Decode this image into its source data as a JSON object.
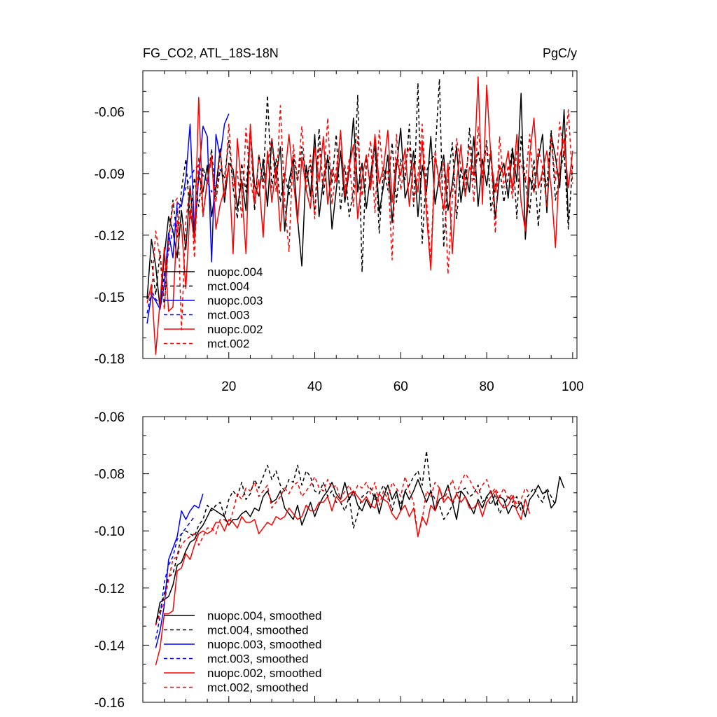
{
  "chart_data": [
    {
      "type": "line",
      "title_left": "FG_CO2, ATL_18S-18N",
      "title_right": "PgC/y",
      "xlim": [
        0,
        101
      ],
      "ylim": [
        -0.18,
        -0.04
      ],
      "xticks": [
        20,
        40,
        60,
        80,
        100
      ],
      "yticks": [
        -0.18,
        -0.15,
        -0.12,
        -0.09,
        -0.06
      ],
      "ytick_labels": [
        "-0.18",
        "-0.15",
        "-0.12",
        "-0.09",
        "-0.06"
      ],
      "xtick_labels": [
        "20",
        "40",
        "60",
        "80",
        "100"
      ],
      "legend_position": "lower-left",
      "series": [
        {
          "name": "nuopc.004",
          "color": "#000000",
          "dash": "solid",
          "x_start": 1,
          "values": [
            -0.151,
            -0.122,
            -0.135,
            -0.156,
            -0.13,
            -0.111,
            -0.118,
            -0.131,
            -0.108,
            -0.127,
            -0.096,
            -0.122,
            -0.091,
            -0.099,
            -0.086,
            -0.111,
            -0.097,
            -0.078,
            -0.104,
            -0.085,
            -0.088,
            -0.107,
            -0.093,
            -0.108,
            -0.068,
            -0.096,
            -0.101,
            -0.083,
            -0.106,
            -0.073,
            -0.092,
            -0.077,
            -0.118,
            -0.094,
            -0.083,
            -0.112,
            -0.135,
            -0.086,
            -0.101,
            -0.071,
            -0.111,
            -0.093,
            -0.082,
            -0.117,
            -0.098,
            -0.079,
            -0.104,
            -0.089,
            -0.063,
            -0.099,
            -0.085,
            -0.107,
            -0.091,
            -0.074,
            -0.109,
            -0.096,
            -0.081,
            -0.114,
            -0.087,
            -0.068,
            -0.102,
            -0.094,
            -0.079,
            -0.111,
            -0.086,
            -0.099,
            -0.072,
            -0.105,
            -0.091,
            -0.081,
            -0.108,
            -0.095,
            -0.077,
            -0.104,
            -0.088,
            -0.099,
            -0.072,
            -0.106,
            -0.083,
            -0.096,
            -0.079,
            -0.112,
            -0.091,
            -0.085,
            -0.102,
            -0.078,
            -0.094,
            -0.051,
            -0.122,
            -0.092,
            -0.099,
            -0.083,
            -0.071,
            -0.109,
            -0.071,
            -0.082,
            -0.097,
            -0.059,
            -0.113
          ]
        },
        {
          "name": "mct.004",
          "color": "#000000",
          "dash": "dashed",
          "x_start": 2,
          "values": [
            -0.132,
            -0.149,
            -0.128,
            -0.155,
            -0.121,
            -0.103,
            -0.121,
            -0.098,
            -0.083,
            -0.112,
            -0.092,
            -0.106,
            -0.087,
            -0.095,
            -0.078,
            -0.103,
            -0.088,
            -0.092,
            -0.074,
            -0.097,
            -0.112,
            -0.085,
            -0.099,
            -0.069,
            -0.108,
            -0.081,
            -0.094,
            -0.052,
            -0.097,
            -0.083,
            -0.104,
            -0.089,
            -0.101,
            -0.081,
            -0.094,
            -0.077,
            -0.092,
            -0.086,
            -0.11,
            -0.068,
            -0.101,
            -0.081,
            -0.095,
            -0.071,
            -0.108,
            -0.086,
            -0.111,
            -0.098,
            -0.052,
            -0.138,
            -0.082,
            -0.096,
            -0.076,
            -0.119,
            -0.087,
            -0.098,
            -0.075,
            -0.104,
            -0.083,
            -0.093,
            -0.066,
            -0.106,
            -0.046,
            -0.124,
            -0.089,
            -0.083,
            -0.081,
            -0.044,
            -0.126,
            -0.093,
            -0.075,
            -0.112,
            -0.087,
            -0.101,
            -0.068,
            -0.093,
            -0.079,
            -0.092,
            -0.074,
            -0.108,
            -0.096,
            -0.087,
            -0.104,
            -0.092,
            -0.077,
            -0.112,
            -0.072,
            -0.094,
            -0.109,
            -0.083,
            -0.116,
            -0.087,
            -0.096,
            -0.069,
            -0.103,
            -0.091,
            -0.079,
            -0.117,
            -0.085
          ]
        },
        {
          "name": "nuopc.003",
          "color": "#0000ff",
          "dash": "solid",
          "x_start": 1,
          "values": [
            -0.163,
            -0.149,
            -0.152,
            -0.156,
            -0.144,
            -0.119,
            -0.131,
            -0.104,
            -0.106,
            -0.092,
            -0.066,
            -0.118,
            -0.091,
            -0.067,
            -0.072,
            -0.133,
            -0.071,
            -0.082,
            -0.066,
            -0.061
          ]
        },
        {
          "name": "mct.003",
          "color": "#0000ff",
          "dash": "dashed",
          "x_start": 1,
          "values": [
            -0.158,
            -0.147,
            -0.151,
            -0.154,
            -0.139,
            -0.128,
            -0.117,
            -0.109,
            -0.104,
            -0.097,
            -0.092,
            -0.088,
            -0.086,
            -0.091,
            -0.094,
            -0.099,
            -0.095,
            -0.088
          ]
        },
        {
          "name": "nuopc.002",
          "color": "#ff0000",
          "dash": "solid",
          "x_start": 1,
          "values": [
            -0.153,
            -0.144,
            -0.178,
            -0.152,
            -0.126,
            -0.157,
            -0.155,
            -0.113,
            -0.115,
            -0.146,
            -0.107,
            -0.123,
            -0.053,
            -0.11,
            -0.094,
            -0.081,
            -0.117,
            -0.105,
            -0.098,
            -0.086,
            -0.129,
            -0.073,
            -0.098,
            -0.129,
            -0.066,
            -0.104,
            -0.093,
            -0.121,
            -0.079,
            -0.104,
            -0.087,
            -0.118,
            -0.092,
            -0.071,
            -0.093,
            -0.114,
            -0.082,
            -0.098,
            -0.107,
            -0.077,
            -0.094,
            -0.072,
            -0.105,
            -0.088,
            -0.094,
            -0.069,
            -0.101,
            -0.087,
            -0.076,
            -0.112,
            -0.092,
            -0.081,
            -0.098,
            -0.071,
            -0.095,
            -0.087,
            -0.069,
            -0.104,
            -0.083,
            -0.091,
            -0.078,
            -0.106,
            -0.085,
            -0.099,
            -0.074,
            -0.11,
            -0.137,
            -0.082,
            -0.094,
            -0.108,
            -0.085,
            -0.129,
            -0.094,
            -0.076,
            -0.101,
            -0.087,
            -0.091,
            -0.043,
            -0.105,
            -0.047,
            -0.083,
            -0.099,
            -0.086,
            -0.091,
            -0.079,
            -0.098,
            -0.071,
            -0.104,
            -0.118,
            -0.081,
            -0.063,
            -0.097,
            -0.089,
            -0.079,
            -0.097,
            -0.126,
            -0.082,
            -0.073,
            -0.097,
            -0.079
          ]
        },
        {
          "name": "mct.002",
          "color": "#ff0000",
          "dash": "dashed",
          "x_start": 2,
          "values": [
            -0.149,
            -0.118,
            -0.131,
            -0.156,
            -0.123,
            -0.105,
            -0.102,
            -0.166,
            -0.113,
            -0.096,
            -0.131,
            -0.082,
            -0.111,
            -0.093,
            -0.084,
            -0.104,
            -0.079,
            -0.101,
            -0.066,
            -0.097,
            -0.089,
            -0.112,
            -0.068,
            -0.093,
            -0.105,
            -0.081,
            -0.098,
            -0.085,
            -0.073,
            -0.099,
            -0.057,
            -0.104,
            -0.128,
            -0.076,
            -0.093,
            -0.067,
            -0.098,
            -0.081,
            -0.112,
            -0.077,
            -0.096,
            -0.063,
            -0.105,
            -0.088,
            -0.071,
            -0.098,
            -0.083,
            -0.106,
            -0.072,
            -0.101,
            -0.088,
            -0.074,
            -0.109,
            -0.069,
            -0.093,
            -0.088,
            -0.132,
            -0.071,
            -0.098,
            -0.084,
            -0.077,
            -0.104,
            -0.091,
            -0.066,
            -0.102,
            -0.133,
            -0.079,
            -0.097,
            -0.084,
            -0.139,
            -0.102,
            -0.073,
            -0.087,
            -0.093,
            -0.076,
            -0.104,
            -0.067,
            -0.091,
            -0.078,
            -0.083,
            -0.119,
            -0.072,
            -0.097,
            -0.086,
            -0.102,
            -0.079,
            -0.085,
            -0.094,
            -0.071,
            -0.099,
            -0.078,
            -0.087,
            -0.106,
            -0.072,
            -0.094,
            -0.065,
            -0.082,
            -0.059,
            -0.095
          ]
        }
      ]
    },
    {
      "type": "line",
      "xlim": [
        0,
        101
      ],
      "ylim": [
        -0.16,
        -0.06
      ],
      "xticks": [
        20,
        40,
        60,
        80,
        100
      ],
      "yticks": [
        -0.16,
        -0.14,
        -0.12,
        -0.1,
        -0.08,
        -0.06
      ],
      "ytick_labels": [
        "-0.16",
        "-0.14",
        "-0.12",
        "-0.10",
        "-0.08",
        "-0.06"
      ],
      "legend_position": "lower-left",
      "series": [
        {
          "name": "nuopc.004, smoothed",
          "color": "#000000",
          "dash": "solid",
          "x_start": 3,
          "values": [
            -0.133,
            -0.125,
            -0.124,
            -0.123,
            -0.119,
            -0.112,
            -0.111,
            -0.107,
            -0.104,
            -0.103,
            -0.1,
            -0.098,
            -0.095,
            -0.092,
            -0.093,
            -0.094,
            -0.095,
            -0.098,
            -0.096,
            -0.096,
            -0.094,
            -0.093,
            -0.095,
            -0.092,
            -0.093,
            -0.088,
            -0.086,
            -0.09,
            -0.089,
            -0.086,
            -0.092,
            -0.094,
            -0.096,
            -0.091,
            -0.098,
            -0.094,
            -0.09,
            -0.095,
            -0.091,
            -0.088,
            -0.086,
            -0.083,
            -0.087,
            -0.089,
            -0.083,
            -0.089,
            -0.086,
            -0.091,
            -0.093,
            -0.089,
            -0.092,
            -0.087,
            -0.094,
            -0.088,
            -0.084,
            -0.089,
            -0.086,
            -0.093,
            -0.086,
            -0.089,
            -0.086,
            -0.082,
            -0.086,
            -0.09,
            -0.086,
            -0.093,
            -0.089,
            -0.088,
            -0.084,
            -0.09,
            -0.096,
            -0.086,
            -0.088,
            -0.091,
            -0.094,
            -0.089,
            -0.092,
            -0.088,
            -0.086,
            -0.091,
            -0.088,
            -0.089,
            -0.094,
            -0.091,
            -0.092,
            -0.09,
            -0.095,
            -0.089,
            -0.087,
            -0.084,
            -0.087,
            -0.086,
            -0.092,
            -0.09,
            -0.081,
            -0.085
          ]
        },
        {
          "name": "mct.004, smoothed",
          "color": "#000000",
          "dash": "dashed",
          "x_start": 3,
          "values": [
            -0.133,
            -0.128,
            -0.122,
            -0.116,
            -0.115,
            -0.109,
            -0.101,
            -0.1,
            -0.101,
            -0.102,
            -0.098,
            -0.096,
            -0.091,
            -0.093,
            -0.091,
            -0.09,
            -0.095,
            -0.089,
            -0.086,
            -0.088,
            -0.083,
            -0.089,
            -0.087,
            -0.082,
            -0.085,
            -0.081,
            -0.077,
            -0.082,
            -0.079,
            -0.084,
            -0.086,
            -0.082,
            -0.083,
            -0.077,
            -0.084,
            -0.079,
            -0.081,
            -0.086,
            -0.087,
            -0.083,
            -0.088,
            -0.086,
            -0.09,
            -0.09,
            -0.093,
            -0.088,
            -0.099,
            -0.094,
            -0.088,
            -0.087,
            -0.085,
            -0.089,
            -0.087,
            -0.084,
            -0.087,
            -0.093,
            -0.087,
            -0.091,
            -0.086,
            -0.084,
            -0.081,
            -0.079,
            -0.084,
            -0.072,
            -0.086,
            -0.089,
            -0.091,
            -0.096,
            -0.094,
            -0.091,
            -0.087,
            -0.086,
            -0.085,
            -0.088,
            -0.087,
            -0.084,
            -0.09,
            -0.088,
            -0.091,
            -0.087,
            -0.094,
            -0.091,
            -0.088,
            -0.09,
            -0.088,
            -0.093,
            -0.089,
            -0.087,
            -0.085,
            -0.088,
            -0.09,
            -0.085,
            -0.088,
            -0.091
          ]
        },
        {
          "name": "nuopc.003, smoothed",
          "color": "#0000ff",
          "dash": "solid",
          "x_start": 3,
          "values": [
            -0.141,
            -0.135,
            -0.126,
            -0.11,
            -0.106,
            -0.102,
            -0.093,
            -0.096,
            -0.093,
            -0.091,
            -0.092,
            -0.087
          ]
        },
        {
          "name": "mct.003, smoothed",
          "color": "#0000ff",
          "dash": "dashed",
          "x_start": 3,
          "values": [
            -0.138,
            -0.13,
            -0.118,
            -0.112,
            -0.109,
            -0.103,
            -0.101,
            -0.099,
            -0.097,
            -0.095
          ]
        },
        {
          "name": "nuopc.002, smoothed",
          "color": "#ff0000",
          "dash": "solid",
          "x_start": 3,
          "values": [
            -0.147,
            -0.141,
            -0.129,
            -0.129,
            -0.128,
            -0.114,
            -0.113,
            -0.108,
            -0.11,
            -0.105,
            -0.101,
            -0.1,
            -0.101,
            -0.1,
            -0.097,
            -0.097,
            -0.1,
            -0.096,
            -0.097,
            -0.099,
            -0.095,
            -0.097,
            -0.097,
            -0.096,
            -0.101,
            -0.099,
            -0.097,
            -0.098,
            -0.095,
            -0.096,
            -0.095,
            -0.092,
            -0.094,
            -0.096,
            -0.095,
            -0.091,
            -0.093,
            -0.093,
            -0.09,
            -0.09,
            -0.088,
            -0.093,
            -0.088,
            -0.09,
            -0.089,
            -0.087,
            -0.086,
            -0.088,
            -0.09,
            -0.088,
            -0.091,
            -0.092,
            -0.087,
            -0.089,
            -0.09,
            -0.094,
            -0.096,
            -0.093,
            -0.091,
            -0.095,
            -0.092,
            -0.102,
            -0.095,
            -0.098,
            -0.091,
            -0.093,
            -0.085,
            -0.09,
            -0.088,
            -0.09,
            -0.087,
            -0.09,
            -0.088,
            -0.092,
            -0.092,
            -0.09,
            -0.095,
            -0.09,
            -0.088,
            -0.086,
            -0.09,
            -0.092,
            -0.091,
            -0.088,
            -0.093,
            -0.096,
            -0.089,
            -0.094
          ]
        },
        {
          "name": "mct.002, smoothed",
          "color": "#ff0000",
          "dash": "dashed",
          "x_start": 3,
          "values": [
            -0.133,
            -0.129,
            -0.125,
            -0.117,
            -0.11,
            -0.109,
            -0.105,
            -0.103,
            -0.102,
            -0.101,
            -0.105,
            -0.102,
            -0.099,
            -0.099,
            -0.101,
            -0.096,
            -0.096,
            -0.098,
            -0.093,
            -0.087,
            -0.089,
            -0.085,
            -0.086,
            -0.083,
            -0.088,
            -0.086,
            -0.084,
            -0.092,
            -0.09,
            -0.088,
            -0.085,
            -0.087,
            -0.084,
            -0.083,
            -0.088,
            -0.086,
            -0.084,
            -0.081,
            -0.085,
            -0.086,
            -0.082,
            -0.085,
            -0.084,
            -0.089,
            -0.086,
            -0.084,
            -0.088,
            -0.084,
            -0.085,
            -0.083,
            -0.087,
            -0.083,
            -0.091,
            -0.086,
            -0.089,
            -0.083,
            -0.085,
            -0.088,
            -0.081,
            -0.086,
            -0.09,
            -0.102,
            -0.096,
            -0.086,
            -0.088,
            -0.083,
            -0.085,
            -0.089,
            -0.086,
            -0.082,
            -0.087,
            -0.083,
            -0.08,
            -0.082,
            -0.085,
            -0.087,
            -0.084,
            -0.082,
            -0.087,
            -0.085,
            -0.088,
            -0.085,
            -0.089,
            -0.087,
            -0.091,
            -0.089,
            -0.085,
            -0.087
          ]
        }
      ]
    }
  ]
}
